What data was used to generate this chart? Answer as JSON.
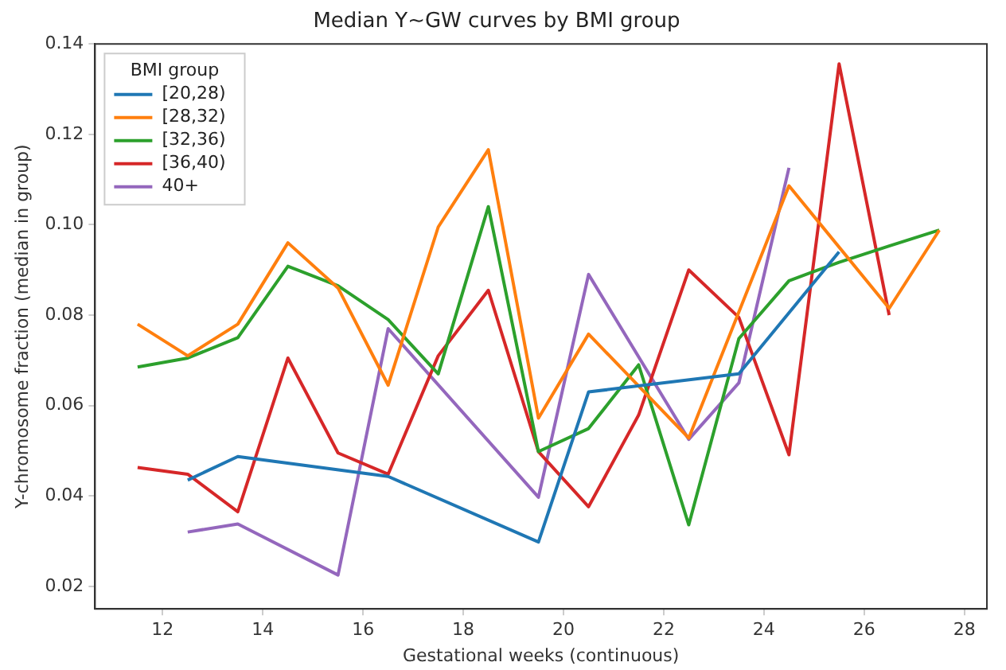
{
  "chart_data": {
    "type": "line",
    "title": "Median Y~GW curves by BMI group",
    "xlabel": "Gestational weeks (continuous)",
    "ylabel": "Y-chromosome fraction (median in group)",
    "legend_title": "BMI group",
    "legend": "top left",
    "grid": false,
    "marker": "none",
    "line_style": "solid",
    "xlim": [
      10.65,
      28.45
    ],
    "xticks": [
      12,
      14,
      16,
      18,
      20,
      22,
      24,
      26,
      28
    ],
    "ylim": [
      0.015,
      0.14
    ],
    "yticks": [
      0.02,
      0.04,
      0.06,
      0.08,
      {
        "value": 0.1,
        "label": "0.10"
      },
      0.12,
      0.14
    ],
    "series": [
      {
        "name": "[20,28)",
        "color": "#1f77b4",
        "x": [
          12.5,
          13.5,
          16.5,
          19.5,
          20.5,
          23.5,
          25.5
        ],
        "values": [
          0.0435,
          0.0487,
          0.0443,
          0.0298,
          0.063,
          0.067,
          0.094
        ]
      },
      {
        "name": "[28,32)",
        "color": "#ff7f0e",
        "x": [
          11.5,
          12.5,
          13.5,
          14.5,
          15.5,
          16.5,
          17.5,
          18.5,
          19.5,
          20.5,
          22.5,
          24.5,
          26.5,
          27.5
        ],
        "values": [
          0.078,
          0.071,
          0.078,
          0.096,
          0.086,
          0.0645,
          0.0995,
          0.1166,
          0.0572,
          0.0758,
          0.0528,
          0.1086,
          0.0815,
          0.0988
        ]
      },
      {
        "name": "[32,36)",
        "color": "#2ca02c",
        "x": [
          11.5,
          12.5,
          13.5,
          14.5,
          15.5,
          16.5,
          17.5,
          18.5,
          19.5,
          20.5,
          21.5,
          22.5,
          23.5,
          24.5,
          25.5,
          26.5,
          27.5
        ],
        "values": [
          0.0685,
          0.0705,
          0.075,
          0.0908,
          0.0865,
          0.079,
          0.067,
          0.104,
          0.0498,
          0.0549,
          0.069,
          0.0336,
          0.0748,
          0.0876,
          0.0917,
          0.0953,
          0.0988
        ]
      },
      {
        "name": "[36,40)",
        "color": "#d62728",
        "x": [
          11.5,
          12.5,
          13.5,
          14.5,
          15.5,
          16.5,
          17.5,
          18.5,
          19.5,
          20.5,
          21.5,
          22.5,
          23.5,
          24.5,
          25.5,
          26.5
        ],
        "values": [
          0.0463,
          0.0448,
          0.0365,
          0.0705,
          0.0495,
          0.0448,
          0.071,
          0.0855,
          0.0498,
          0.0376,
          0.0579,
          0.09,
          0.0795,
          0.0491,
          0.1356,
          0.08
        ]
      },
      {
        "name": "40+",
        "color": "#9467bd",
        "x": [
          12.5,
          13.5,
          15.5,
          16.5,
          19.5,
          20.5,
          22.5,
          23.5,
          24.5
        ],
        "values": [
          0.032,
          0.0338,
          0.0225,
          0.077,
          0.0397,
          0.089,
          0.0525,
          0.065,
          0.1126
        ]
      }
    ]
  }
}
